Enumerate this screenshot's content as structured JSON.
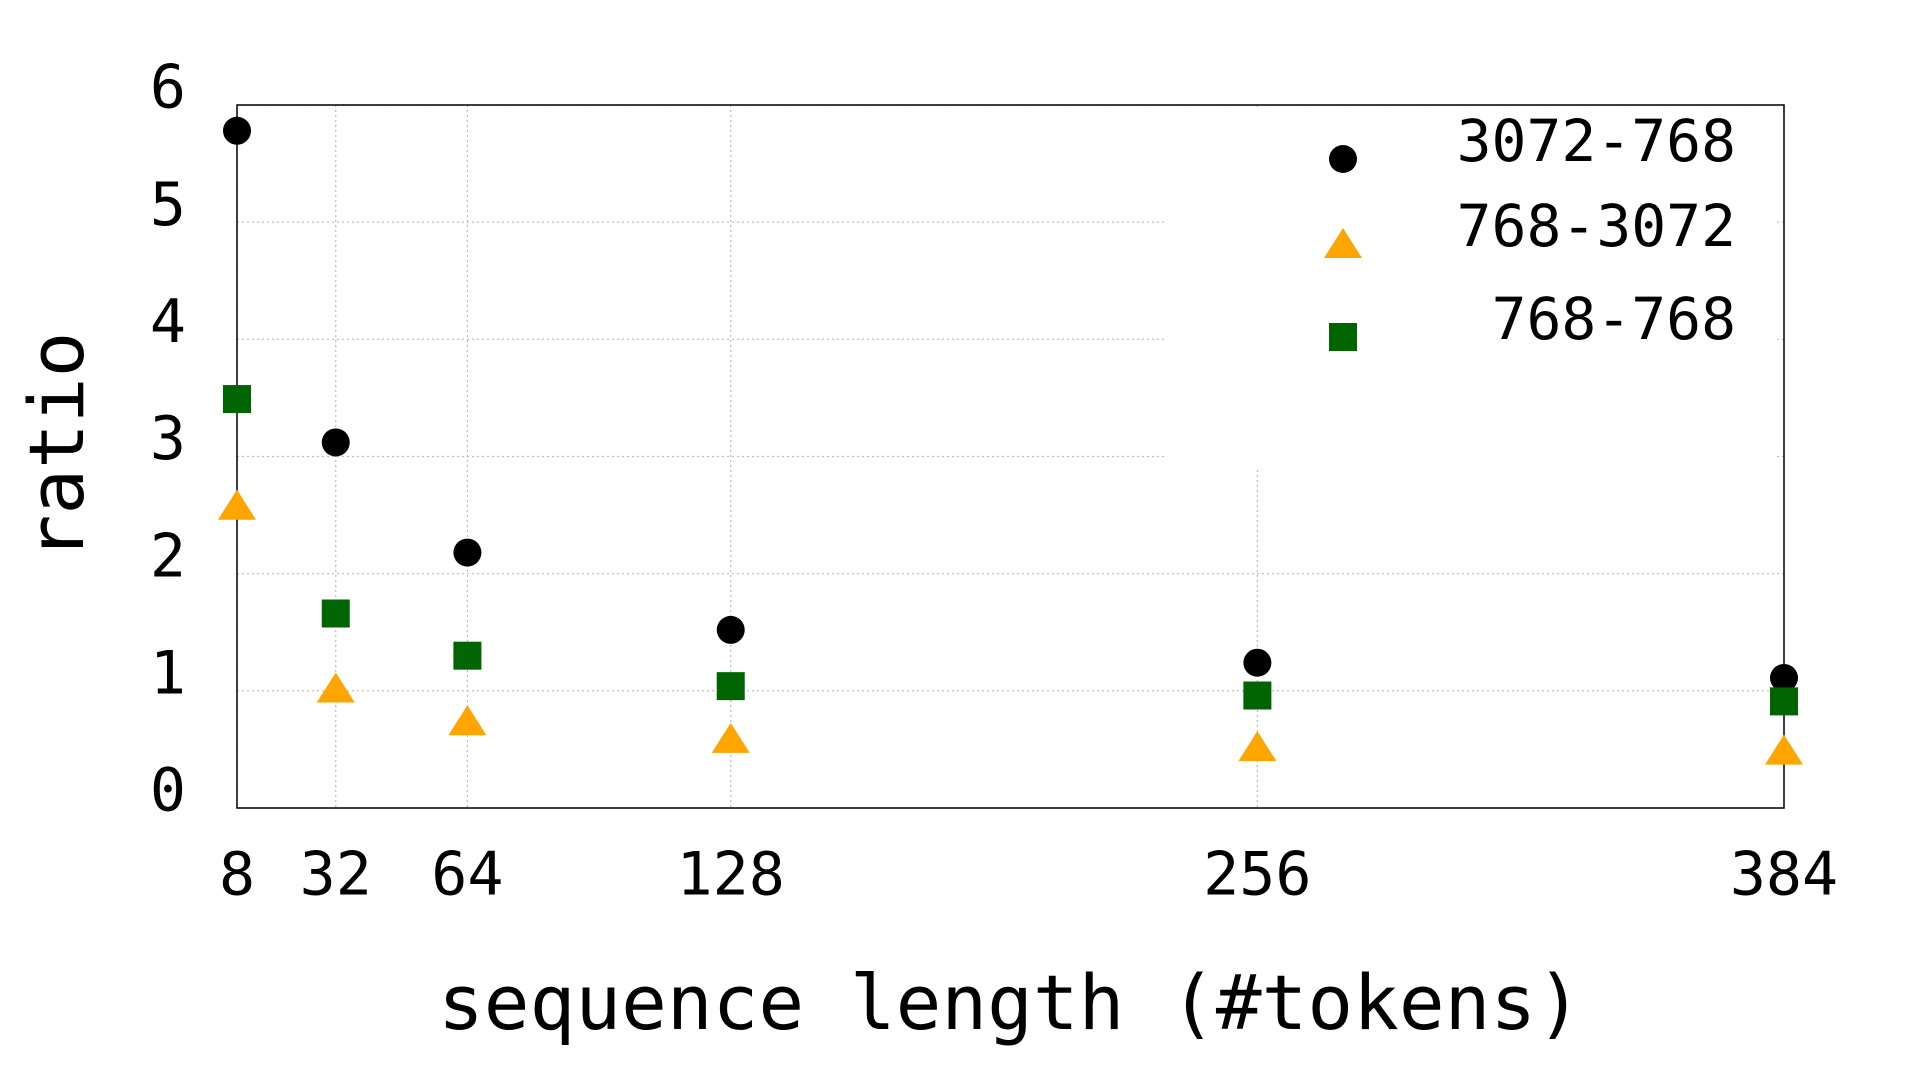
{
  "chart_data": {
    "type": "scatter",
    "x_label": "sequence length (#tokens)",
    "y_label": "ratio",
    "x": [
      8,
      32,
      64,
      128,
      256,
      384
    ],
    "series": [
      {
        "name": "3072-768",
        "color": "#000000",
        "marker": "circle",
        "values": [
          5.78,
          3.12,
          2.18,
          1.52,
          1.24,
          1.11
        ]
      },
      {
        "name": "768-3072",
        "color": "#ffa500",
        "marker": "triangle",
        "values": [
          2.58,
          1.02,
          0.74,
          0.59,
          0.52,
          0.49
        ]
      },
      {
        "name": "768-768",
        "color": "#006400",
        "marker": "square",
        "values": [
          3.49,
          1.66,
          1.3,
          1.04,
          0.96,
          0.91
        ]
      }
    ],
    "xlim": [
      8,
      384
    ],
    "xticks": [
      8,
      32,
      64,
      128,
      256,
      384
    ],
    "ylim": [
      0,
      6
    ],
    "yticks": [
      0,
      1,
      2,
      3,
      4,
      5,
      6
    ],
    "grid": true,
    "legend": "top-right"
  }
}
